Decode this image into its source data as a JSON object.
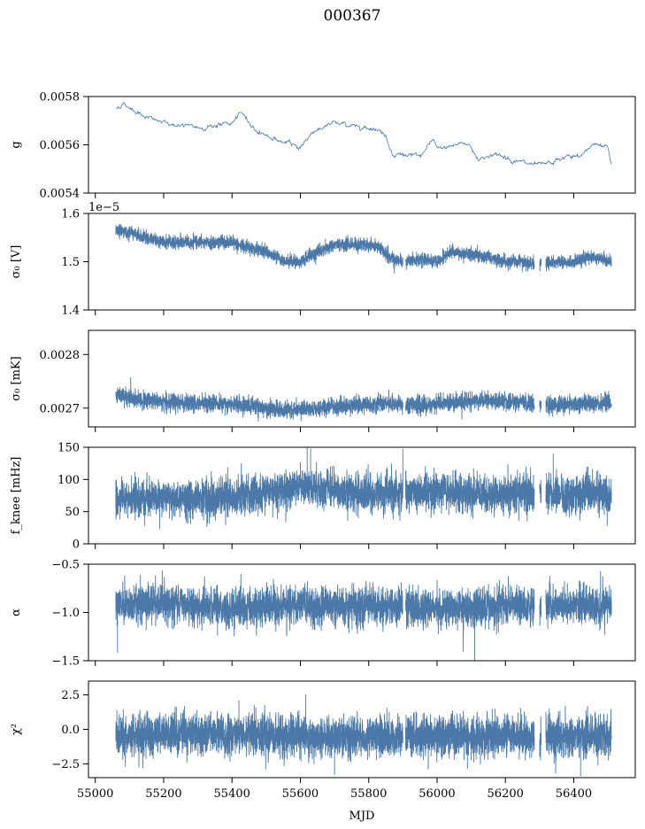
{
  "title": "000367",
  "colors": {
    "series": "#4c78a8",
    "axis": "#000000"
  },
  "chart_data": {
    "type": "line",
    "title": "000367",
    "xlabel": "MJD",
    "xlim": [
      54980,
      56580
    ],
    "xticks": [
      55000,
      55200,
      55400,
      55600,
      55800,
      56000,
      56200,
      56400
    ],
    "xtick_labels": [
      "55000",
      "55200",
      "55400",
      "55600",
      "55800",
      "56000",
      "56200",
      "56400"
    ],
    "data_range_x": [
      55060,
      56510
    ],
    "panels": [
      {
        "id": "g",
        "ylabel": "g",
        "ylim": [
          0.0054,
          0.0058
        ],
        "yticks": [
          0.0054,
          0.0056,
          0.0058
        ],
        "ytick_labels": [
          "0.0054",
          "0.0056",
          "0.0058"
        ],
        "offset_text": "",
        "style": "thin",
        "baseline": [
          [
            55060,
            0.00575
          ],
          [
            55080,
            0.00577
          ],
          [
            55120,
            0.00574
          ],
          [
            55160,
            0.00571
          ],
          [
            55200,
            0.00569
          ],
          [
            55250,
            0.00568
          ],
          [
            55300,
            0.00567
          ],
          [
            55350,
            0.00568
          ],
          [
            55400,
            0.00569
          ],
          [
            55430,
            0.00573
          ],
          [
            55470,
            0.00566
          ],
          [
            55500,
            0.00564
          ],
          [
            55550,
            0.00561
          ],
          [
            55600,
            0.00559
          ],
          [
            55640,
            0.00566
          ],
          [
            55700,
            0.00569
          ],
          [
            55750,
            0.00568
          ],
          [
            55820,
            0.00567
          ],
          [
            55850,
            0.00564
          ],
          [
            55870,
            0.00556
          ],
          [
            55900,
            0.00556
          ],
          [
            55950,
            0.00555
          ],
          [
            55990,
            0.00562
          ],
          [
            56000,
            0.00558
          ],
          [
            56050,
            0.0056
          ],
          [
            56090,
            0.00561
          ],
          [
            56120,
            0.00554
          ],
          [
            56160,
            0.00556
          ],
          [
            56200,
            0.00555
          ],
          [
            56240,
            0.00553
          ],
          [
            56290,
            0.00551
          ],
          [
            56330,
            0.00552
          ],
          [
            56380,
            0.00555
          ],
          [
            56420,
            0.00555
          ],
          [
            56460,
            0.00561
          ],
          [
            56500,
            0.00559
          ],
          [
            56510,
            0.00552
          ]
        ],
        "noise": 5e-06,
        "spikes": []
      },
      {
        "id": "sigma0-v",
        "ylabel": "σ₀ [V]",
        "ylim": [
          1.4e-05,
          1.6e-05
        ],
        "yticks": [
          1.4e-05,
          1.5e-05,
          1.6e-05
        ],
        "ytick_labels": [
          "1.4",
          "1.5",
          "1.6"
        ],
        "offset_text": "1e−5",
        "style": "band",
        "baseline": [
          [
            55060,
            1.565e-05
          ],
          [
            55100,
            1.56e-05
          ],
          [
            55150,
            1.55e-05
          ],
          [
            55200,
            1.54e-05
          ],
          [
            55300,
            1.54e-05
          ],
          [
            55400,
            1.54e-05
          ],
          [
            55450,
            1.53e-05
          ],
          [
            55500,
            1.52e-05
          ],
          [
            55550,
            1.5e-05
          ],
          [
            55600,
            1.5e-05
          ],
          [
            55650,
            1.52e-05
          ],
          [
            55700,
            1.535e-05
          ],
          [
            55800,
            1.535e-05
          ],
          [
            55830,
            1.53e-05
          ],
          [
            55870,
            1.505e-05
          ],
          [
            55900,
            1.5e-05
          ],
          [
            55950,
            1.505e-05
          ],
          [
            56000,
            1.5e-05
          ],
          [
            56040,
            1.52e-05
          ],
          [
            56100,
            1.515e-05
          ],
          [
            56150,
            1.51e-05
          ],
          [
            56200,
            1.5e-05
          ],
          [
            56250,
            1.5e-05
          ],
          [
            56300,
            1.495e-05
          ],
          [
            56350,
            1.5e-05
          ],
          [
            56400,
            1.5e-05
          ],
          [
            56450,
            1.51e-05
          ],
          [
            56510,
            1.5e-05
          ]
        ],
        "noise": 1.2e-07,
        "spikes": []
      },
      {
        "id": "sigma0-mk",
        "ylabel": "σ₀ [mK]",
        "ylim": [
          0.002665,
          0.002845
        ],
        "yticks": [
          0.0027,
          0.0028
        ],
        "ytick_labels": [
          "0.0027",
          "0.0028"
        ],
        "offset_text": "",
        "style": "band",
        "baseline": [
          [
            55060,
            0.002725
          ],
          [
            55150,
            0.002715
          ],
          [
            55250,
            0.00271
          ],
          [
            55350,
            0.00271
          ],
          [
            55450,
            0.002705
          ],
          [
            55550,
            0.002695
          ],
          [
            55650,
            0.0027
          ],
          [
            55750,
            0.002705
          ],
          [
            55850,
            0.00271
          ],
          [
            55950,
            0.002705
          ],
          [
            56050,
            0.00271
          ],
          [
            56150,
            0.002715
          ],
          [
            56250,
            0.00271
          ],
          [
            56350,
            0.002705
          ],
          [
            56450,
            0.00271
          ],
          [
            56510,
            0.00271
          ]
        ],
        "noise": 1.4e-05,
        "spikes": []
      },
      {
        "id": "fknee",
        "ylabel": "f_knee [mHz]",
        "ylim": [
          0,
          150
        ],
        "yticks": [
          0,
          50,
          100,
          150
        ],
        "ytick_labels": [
          "0",
          "50",
          "100",
          "150"
        ],
        "offset_text": "",
        "style": "band",
        "baseline": [
          [
            55060,
            70
          ],
          [
            55200,
            70
          ],
          [
            55400,
            72
          ],
          [
            55500,
            80
          ],
          [
            55600,
            90
          ],
          [
            55700,
            82
          ],
          [
            55800,
            78
          ],
          [
            55900,
            80
          ],
          [
            56000,
            80
          ],
          [
            56100,
            78
          ],
          [
            56200,
            76
          ],
          [
            56300,
            76
          ],
          [
            56400,
            78
          ],
          [
            56510,
            76
          ]
        ],
        "noise": 26,
        "spikes": [
          [
            55620,
            150
          ],
          [
            55630,
            148
          ],
          [
            55900,
            148
          ],
          [
            56340,
            140
          ]
        ]
      },
      {
        "id": "alpha",
        "ylabel": "α",
        "ylim": [
          -1.5,
          -0.5
        ],
        "yticks": [
          -1.5,
          -1.0,
          -0.5
        ],
        "ytick_labels": [
          "−1.5",
          "−1.0",
          "−0.5"
        ],
        "offset_text": "",
        "style": "band",
        "baseline": [
          [
            55060,
            -0.92
          ],
          [
            55200,
            -0.9
          ],
          [
            55400,
            -0.96
          ],
          [
            55600,
            -0.93
          ],
          [
            55800,
            -0.93
          ],
          [
            56000,
            -0.95
          ],
          [
            56100,
            -0.96
          ],
          [
            56200,
            -0.92
          ],
          [
            56300,
            -0.92
          ],
          [
            56400,
            -0.93
          ],
          [
            56510,
            -0.93
          ]
        ],
        "noise": 0.17,
        "spikes": [
          [
            55065,
            -1.42
          ],
          [
            56110,
            -1.5
          ],
          [
            56330,
            -0.62
          ]
        ]
      },
      {
        "id": "chi2",
        "ylabel": "χ²",
        "ylim": [
          -3.5,
          3.5
        ],
        "yticks": [
          -2.5,
          0.0,
          2.5
        ],
        "ytick_labels": [
          "−2.5",
          "0.0",
          "2.5"
        ],
        "offset_text": "",
        "style": "band",
        "baseline": [
          [
            55060,
            -0.4
          ],
          [
            55300,
            -0.3
          ],
          [
            55500,
            -0.4
          ],
          [
            55700,
            -0.6
          ],
          [
            55900,
            -0.5
          ],
          [
            56100,
            -0.5
          ],
          [
            56300,
            -0.6
          ],
          [
            56510,
            -0.5
          ]
        ],
        "noise": 1.3,
        "spikes": [
          [
            55420,
            2.1
          ],
          [
            55700,
            -3.3
          ],
          [
            56420,
            -3.4
          ]
        ]
      }
    ],
    "gaps": [
      [
        55900,
        55908
      ],
      [
        56285,
        56300
      ],
      [
        56305,
        56318
      ]
    ]
  }
}
